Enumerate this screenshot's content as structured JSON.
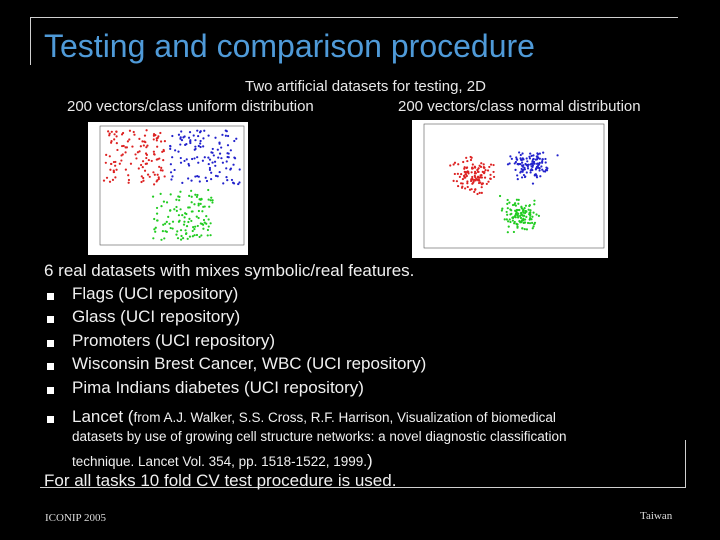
{
  "title": "Testing and comparison procedure",
  "subtitle": "Two artificial datasets for testing, 2D",
  "plot_labels": [
    "200 vectors/class uniform distribution",
    "200 vectors/class normal distribution"
  ],
  "intro": "6 real datasets with mixes symbolic/real features.",
  "bullets": [
    {
      "text": "Flags (UCI repository)"
    },
    {
      "text": "Glass (UCI repository)"
    },
    {
      "text": "Promoters (UCI repository)"
    },
    {
      "text": "Wisconsin Brest Cancer, WBC (UCI repository)"
    },
    {
      "text": "Pima Indians diabetes (UCI repository)"
    },
    {
      "text": "Lancet (",
      "citation_lines": [
        "from A.J. Walker, S.S. Cross, R.F. Harrison, Visualization of biomedical",
        "datasets by use of growing cell structure networks: a novel diagnostic classification",
        "technique. Lancet Vol. 354, pp. 1518-1522, 1999."
      ],
      "close": ")"
    }
  ],
  "conclusion": "For all tasks 10 fold CV test procedure is used.",
  "footer": {
    "conference": "ICONIP 2005",
    "location": "Taiwan"
  }
}
